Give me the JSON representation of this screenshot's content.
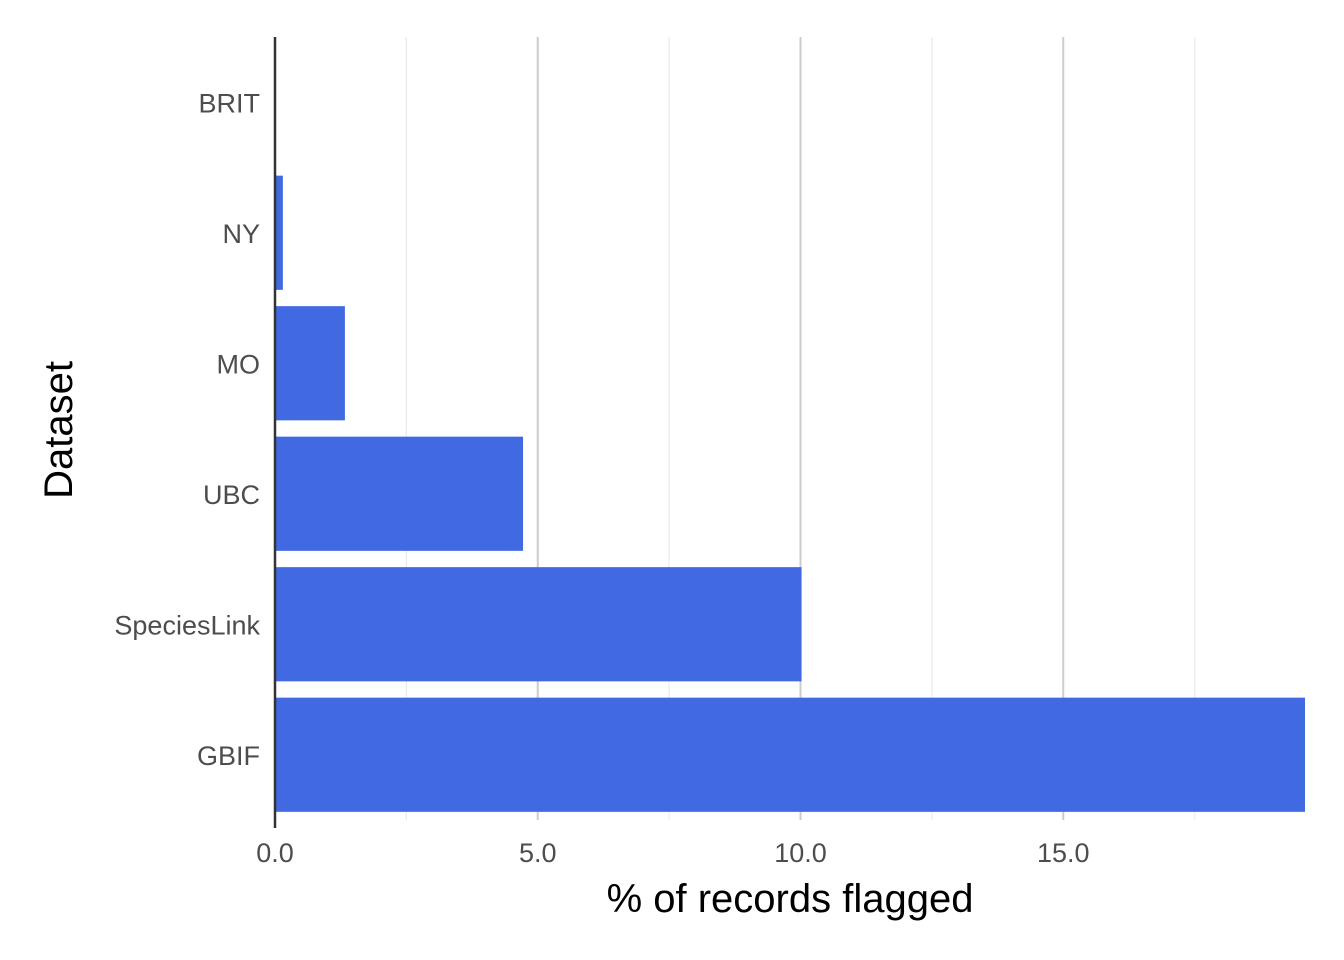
{
  "chart_data": {
    "type": "bar",
    "orientation": "horizontal",
    "title": "",
    "xlabel": "% of records flagged",
    "ylabel": "Dataset",
    "categories": [
      "BRIT",
      "NY",
      "MO",
      "UBC",
      "SpeciesLink",
      "GBIF"
    ],
    "values": [
      0.0,
      0.15,
      1.33,
      4.72,
      10.02,
      19.6
    ],
    "xlim": [
      0,
      19.6
    ],
    "xticks": [
      0,
      5,
      10,
      15
    ],
    "xtick_labels": [
      "0.0",
      "5.0",
      "10.0",
      "15.0"
    ],
    "grid": "vertical",
    "legend": "none",
    "colors": {
      "bar": "#4169E1",
      "axis": "#333333",
      "grid_major": "#cccccc",
      "grid_minor": "#ebebeb"
    }
  }
}
